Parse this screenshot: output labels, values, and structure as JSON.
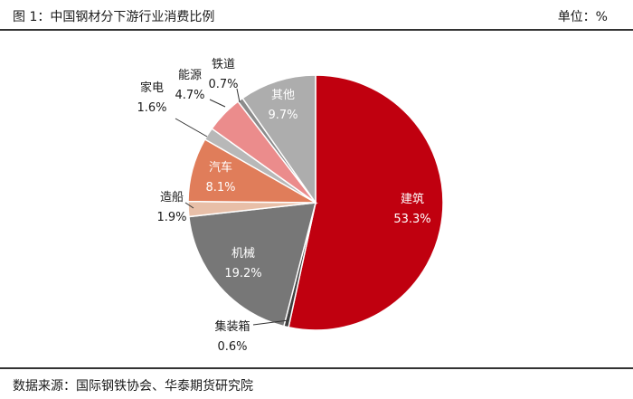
{
  "header": {
    "title": "图 1：中国钢材分下游行业消费比例",
    "unit": "单位：%"
  },
  "footer": {
    "source": "数据来源：国际钢铁协会、华泰期货研究院"
  },
  "chart_data": {
    "type": "pie",
    "title": "中国钢材分下游行业消费比例",
    "unit": "%",
    "slices": [
      {
        "name": "建筑",
        "value": 53.3,
        "value_label": "53.3%",
        "color": "#c0000f"
      },
      {
        "name": "集装箱",
        "value": 0.6,
        "value_label": "0.6%",
        "color": "#3f3f3f"
      },
      {
        "name": "机械",
        "value": 19.2,
        "value_label": "19.2%",
        "color": "#777777"
      },
      {
        "name": "造船",
        "value": 1.9,
        "value_label": "1.9%",
        "color": "#e8bfa8"
      },
      {
        "name": "汽车",
        "value": 8.1,
        "value_label": "8.1%",
        "color": "#e07d5a"
      },
      {
        "name": "家电",
        "value": 1.6,
        "value_label": "1.6%",
        "color": "#b8b8b8"
      },
      {
        "name": "能源",
        "value": 4.7,
        "value_label": "4.7%",
        "color": "#eb8c8c"
      },
      {
        "name": "铁道",
        "value": 0.7,
        "value_label": "0.7%",
        "color": "#8c8c8c"
      },
      {
        "name": "其他",
        "value": 9.7,
        "value_label": "9.7%",
        "color": "#adadad"
      }
    ],
    "start_angle_deg": 0,
    "direction": "clockwise",
    "label_color_inside": "#ffffff",
    "label_color_outside": "#1a1a1a"
  }
}
